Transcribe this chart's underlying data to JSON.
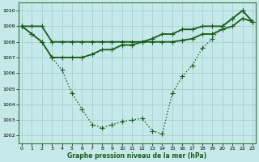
{
  "line1_y": [
    1009,
    1009,
    1009,
    1008,
    1008,
    1008,
    1008,
    1008,
    1008,
    1008,
    1008,
    1008,
    1008,
    1008.2,
    1008.5,
    1008.5,
    1008.8,
    1008.8,
    1009,
    1009,
    1009,
    1009.5,
    1010,
    1009.3
  ],
  "line2_y": [
    1009,
    1008.5,
    1008,
    1007,
    1007,
    1007,
    1007,
    1007.2,
    1007.5,
    1007.5,
    1007.8,
    1007.8,
    1008,
    1008,
    1008,
    1008,
    1008.1,
    1008.2,
    1008.5,
    1008.5,
    1008.8,
    1009,
    1009.5,
    1009.3
  ],
  "line3_y": [
    1009,
    1008.5,
    1008,
    1007,
    1006.2,
    1004.7,
    1003.7,
    1002.7,
    1002.5,
    1002.7,
    1002.9,
    1003.0,
    1003.1,
    1002.3,
    1002.1,
    1004.7,
    1005.8,
    1006.5,
    1007.6,
    1008.2,
    1009.0,
    1009.5,
    1010.0,
    1009.3
  ],
  "x": [
    0,
    1,
    2,
    3,
    4,
    5,
    6,
    7,
    8,
    9,
    10,
    11,
    12,
    13,
    14,
    15,
    16,
    17,
    18,
    19,
    20,
    21,
    22,
    23
  ],
  "ylim": [
    1001.5,
    1010.5
  ],
  "xlim": [
    -0.3,
    23.3
  ],
  "yticks": [
    1002,
    1003,
    1004,
    1005,
    1006,
    1007,
    1008,
    1009,
    1010
  ],
  "xticks": [
    0,
    1,
    2,
    3,
    4,
    5,
    6,
    7,
    8,
    9,
    10,
    11,
    12,
    13,
    14,
    15,
    16,
    17,
    18,
    19,
    20,
    21,
    22,
    23
  ],
  "xlabel": "Graphe pression niveau de la mer (hPa)",
  "bg_color": "#c5e8e8",
  "grid_color": "#9ecece",
  "line_color": "#1a5c1a",
  "marker": "+",
  "marker_size": 4.0,
  "lw1": 1.3,
  "lw2": 1.3,
  "lw3": 1.0
}
